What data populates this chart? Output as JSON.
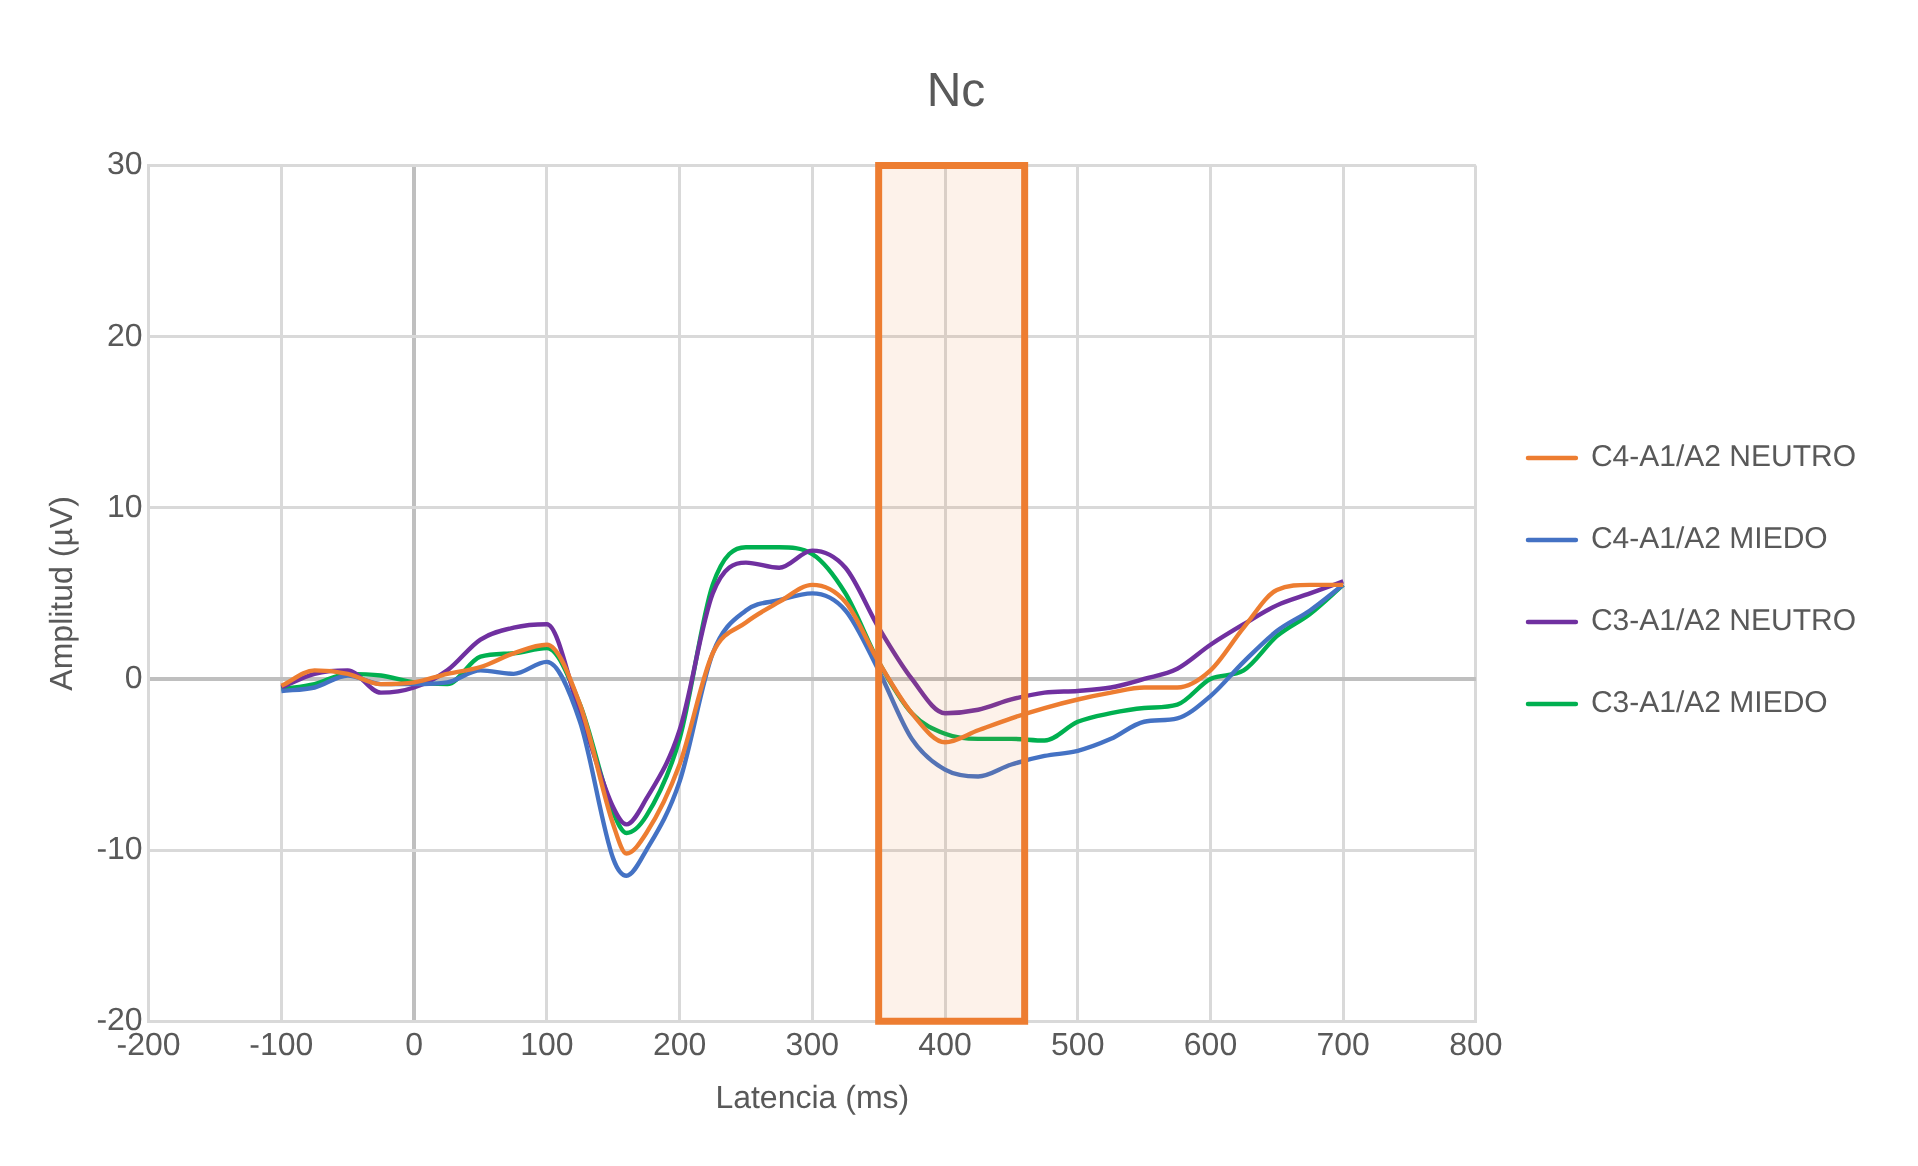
{
  "chart_data": {
    "type": "line",
    "title": "Nc",
    "xlabel": "Latencia (ms)",
    "ylabel": "Amplitud (µV)",
    "x": [
      -100,
      -75,
      -50,
      -25,
      0,
      25,
      50,
      75,
      100,
      125,
      150,
      160,
      175,
      200,
      225,
      250,
      275,
      300,
      325,
      350,
      375,
      400,
      425,
      450,
      475,
      500,
      525,
      550,
      575,
      600,
      625,
      650,
      675,
      700
    ],
    "series": [
      {
        "name": "C4-A1/A2 NEUTRO",
        "color": "#ed7d31",
        "values": [
          -0.4,
          0.5,
          0.3,
          -0.3,
          -0.2,
          0.3,
          0.7,
          1.5,
          2.0,
          -1.5,
          -8.5,
          -10.2,
          -9,
          -5,
          1.5,
          3.3,
          4.5,
          5.5,
          4.5,
          1.0,
          -2,
          -3.7,
          -3,
          -2.3,
          -1.7,
          -1.2,
          -0.8,
          -0.5,
          -0.5,
          0.5,
          3,
          5.2,
          5.5,
          5.5
        ]
      },
      {
        "name": "C4-A1/A2 MIEDO",
        "color": "#4472c4",
        "values": [
          -0.7,
          -0.5,
          0.2,
          -0.3,
          -0.3,
          -0.2,
          0.5,
          0.3,
          1.0,
          -2.5,
          -10.5,
          -11.5,
          -10,
          -6,
          1.5,
          4,
          4.6,
          5,
          4,
          0.5,
          -3.5,
          -5.3,
          -5.7,
          -5,
          -4.5,
          -4.2,
          -3.5,
          -2.5,
          -2.3,
          -1,
          1,
          2.8,
          4,
          5.5
        ]
      },
      {
        "name": "C3-A1/A2 NEUTRO",
        "color": "#7030a0",
        "values": [
          -0.5,
          0.3,
          0.5,
          -0.8,
          -0.5,
          0.5,
          2.3,
          3.0,
          3.2,
          -2,
          -7.5,
          -8.5,
          -7,
          -3,
          5,
          6.8,
          6.5,
          7.5,
          6.5,
          3,
          0,
          -2,
          -1.8,
          -1.2,
          -0.8,
          -0.7,
          -0.5,
          0,
          0.6,
          2,
          3.2,
          4.3,
          5,
          5.7
        ]
      },
      {
        "name": "C3-A1/A2 MIEDO",
        "color": "#00b050",
        "values": [
          -0.6,
          -0.3,
          0.3,
          0.2,
          -0.2,
          -0.3,
          1.3,
          1.5,
          1.8,
          -1.5,
          -7.8,
          -9,
          -8,
          -3.5,
          5.5,
          7.7,
          7.7,
          7.3,
          5,
          1,
          -2,
          -3.2,
          -3.5,
          -3.5,
          -3.6,
          -2.5,
          -2,
          -1.7,
          -1.5,
          0,
          0.5,
          2.5,
          3.8,
          5.5
        ]
      }
    ],
    "xlim": [
      -200,
      800
    ],
    "xticks": [
      -200,
      -100,
      0,
      100,
      200,
      300,
      400,
      500,
      600,
      700,
      800
    ],
    "ylim": [
      -20,
      30
    ],
    "yticks": [
      -20,
      -10,
      0,
      10,
      20,
      30
    ],
    "bands": [
      {
        "axis": "x",
        "from": 350,
        "to": 460,
        "color": "#ed7d31"
      }
    ],
    "grid": true,
    "legend": "right",
    "marker": "none",
    "line_style": "solid"
  }
}
